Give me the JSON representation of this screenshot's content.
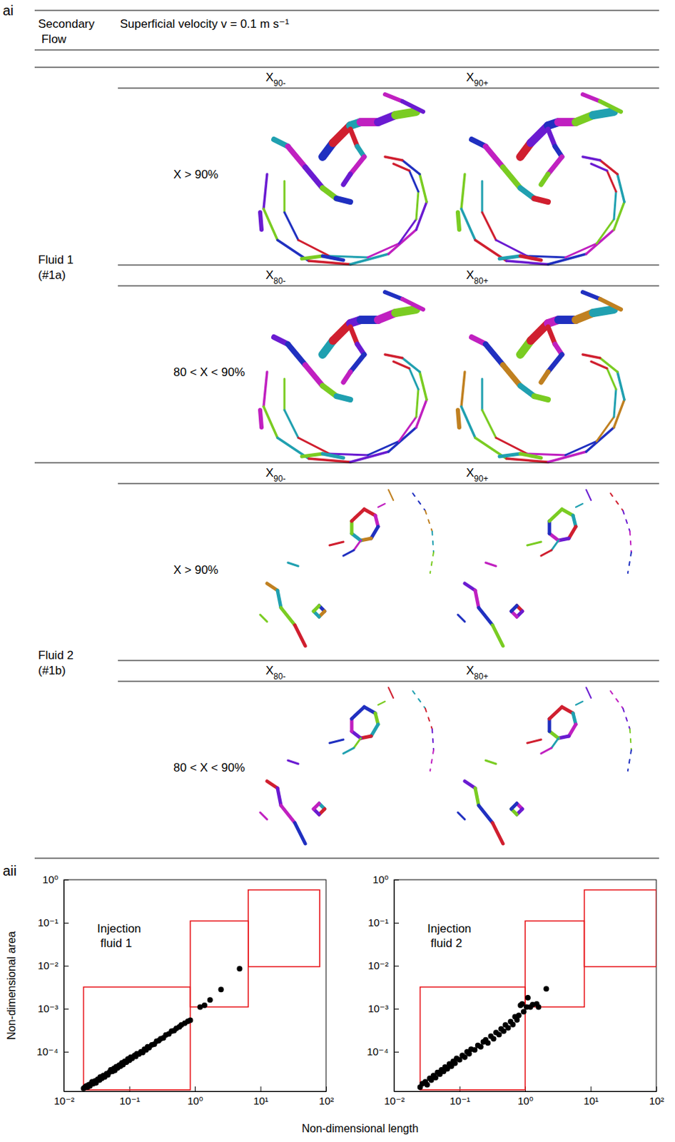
{
  "figure": {
    "panel_a_i": {
      "label": "ai",
      "header": {
        "col1": "Secondary Flow",
        "col2": "Superficial velocity v = 0.1 m s⁻¹"
      },
      "groups": [
        {
          "name": "Fluid 1",
          "id": "(#1a)",
          "rows": [
            {
              "label": "X > 90%",
              "columns": [
                "X90-",
                "X90+"
              ]
            },
            {
              "label": "80 < X < 90%",
              "columns": [
                "X80-",
                "X80+"
              ]
            }
          ]
        },
        {
          "name": "Fluid 2",
          "id": "(#1b)",
          "rows": [
            {
              "label": "X > 90%",
              "columns": [
                "X90-",
                "X90+"
              ]
            },
            {
              "label": "80 < X < 90%",
              "columns": [
                "X80-",
                "X80+"
              ]
            }
          ]
        }
      ]
    },
    "panel_a_ii_label": "aii",
    "shared_x_label": "Non-dimensional length"
  },
  "chart_data": [
    {
      "type": "scatter",
      "annotation": "Injection fluid 1",
      "y_label": "Non-dimensional area",
      "log": true,
      "color": "#000000",
      "marker": "circle",
      "xlim": [
        0.01,
        100
      ],
      "ylim": [
        1.2e-05,
        1
      ],
      "xticks": [
        {
          "value": 0.01,
          "label": "10⁻²"
        },
        {
          "value": 0.1,
          "label": "10⁻¹"
        },
        {
          "value": 1,
          "label": "10⁰"
        },
        {
          "value": 10,
          "label": "10¹"
        },
        {
          "value": 100,
          "label": "10²"
        }
      ],
      "yticks": [
        {
          "value": 0.0001,
          "label": "10⁻⁴"
        },
        {
          "value": 0.001,
          "label": "10⁻³"
        },
        {
          "value": 0.01,
          "label": "10⁻²"
        },
        {
          "value": 0.1,
          "label": "10⁻¹"
        },
        {
          "value": 1,
          "label": "10⁰"
        }
      ],
      "regions": [
        {
          "x": [
            0.02,
            0.85
          ],
          "y": [
            1.3e-05,
            0.0032
          ]
        },
        {
          "x": [
            0.85,
            6.5
          ],
          "y": [
            0.0011,
            0.11
          ]
        },
        {
          "x": [
            6.5,
            80
          ],
          "y": [
            0.0095,
            0.58
          ]
        }
      ],
      "x": [
        0.02,
        0.021,
        0.022,
        0.023,
        0.024,
        0.025,
        0.026,
        0.027,
        0.028,
        0.03,
        0.031,
        0.033,
        0.035,
        0.036,
        0.038,
        0.04,
        0.042,
        0.045,
        0.047,
        0.05,
        0.052,
        0.055,
        0.058,
        0.06,
        0.063,
        0.066,
        0.07,
        0.073,
        0.077,
        0.08,
        0.085,
        0.09,
        0.095,
        0.1,
        0.105,
        0.11,
        0.12,
        0.125,
        0.13,
        0.14,
        0.15,
        0.16,
        0.17,
        0.18,
        0.19,
        0.2,
        0.22,
        0.24,
        0.26,
        0.28,
        0.3,
        0.33,
        0.36,
        0.4,
        0.44,
        0.48,
        0.52,
        0.58,
        0.62,
        0.7,
        0.78,
        0.85,
        1.2,
        1.4,
        1.7,
        2.5,
        4.8
      ],
      "values": [
        1.4e-05,
        1.5e-05,
        1.6e-05,
        1.5e-05,
        1.7e-05,
        1.6e-05,
        1.8e-05,
        2e-05,
        1.8e-05,
        2.1e-05,
        1.9e-05,
        2.3e-05,
        2.2e-05,
        2.6e-05,
        2.4e-05,
        2.8e-05,
        2.6e-05,
        3.1e-05,
        2.9e-05,
        3.4e-05,
        3.8e-05,
        3.5e-05,
        4.1e-05,
        3.7e-05,
        4.5e-05,
        4.2e-05,
        4.9e-05,
        4.6e-05,
        5.5e-05,
        5e-05,
        6e-05,
        5.7e-05,
        6.8e-05,
        6.3e-05,
        7.5e-05,
        7e-05,
        8.2e-05,
        7.8e-05,
        9e-05,
        8.8e-05,
        0.0001,
        9.6e-05,
        0.000115,
        0.00011,
        0.00013,
        0.000125,
        0.000145,
        0.00015,
        0.000175,
        0.00018,
        0.0002,
        0.00021,
        0.000245,
        0.00026,
        0.0003,
        0.00031,
        0.00035,
        0.00038,
        0.00042,
        0.00046,
        0.00051,
        0.00054,
        0.0011,
        0.0012,
        0.0016,
        0.0028,
        0.0085
      ]
    },
    {
      "type": "scatter",
      "annotation": "Injection fluid 2",
      "log": true,
      "color": "#000000",
      "marker": "circle",
      "xlim": [
        0.01,
        100
      ],
      "ylim": [
        1.2e-05,
        1
      ],
      "xticks": [
        {
          "value": 0.01,
          "label": "10⁻²"
        },
        {
          "value": 0.1,
          "label": "10⁻¹"
        },
        {
          "value": 1,
          "label": "10⁰"
        },
        {
          "value": 10,
          "label": "10¹"
        },
        {
          "value": 100,
          "label": "10²"
        }
      ],
      "yticks": [
        {
          "value": 0.0001,
          "label": "10⁻⁴"
        },
        {
          "value": 0.001,
          "label": "10⁻³"
        },
        {
          "value": 0.01,
          "label": "10⁻²"
        },
        {
          "value": 0.1,
          "label": "10⁻¹"
        },
        {
          "value": 1,
          "label": "10⁰"
        }
      ],
      "regions": [
        {
          "x": [
            0.025,
            1.0
          ],
          "y": [
            1.3e-05,
            0.0032
          ]
        },
        {
          "x": [
            1.0,
            8
          ],
          "y": [
            0.0011,
            0.11
          ]
        },
        {
          "x": [
            8,
            100
          ],
          "y": [
            0.0095,
            0.58
          ]
        }
      ],
      "x": [
        0.025,
        0.027,
        0.03,
        0.032,
        0.035,
        0.037,
        0.04,
        0.043,
        0.046,
        0.05,
        0.053,
        0.057,
        0.06,
        0.065,
        0.07,
        0.075,
        0.08,
        0.085,
        0.09,
        0.1,
        0.11,
        0.12,
        0.13,
        0.14,
        0.15,
        0.17,
        0.19,
        0.21,
        0.23,
        0.25,
        0.27,
        0.3,
        0.33,
        0.36,
        0.4,
        0.43,
        0.47,
        0.5,
        0.55,
        0.6,
        0.65,
        0.7,
        0.75,
        0.8,
        0.85,
        0.9,
        0.95,
        1.05,
        1.1,
        1.2,
        1.3,
        1.5,
        1.6,
        2.1
      ],
      "values": [
        1.5e-05,
        1.8e-05,
        2e-05,
        1.7e-05,
        2.4e-05,
        2.2e-05,
        2.8e-05,
        2.5e-05,
        3.3e-05,
        3e-05,
        3.8e-05,
        3.5e-05,
        4.4e-05,
        4e-05,
        5.2e-05,
        4.6e-05,
        6e-05,
        5.4e-05,
        7e-05,
        6.5e-05,
        8.2e-05,
        7.5e-05,
        0.0001,
        9e-05,
        0.000115,
        0.00011,
        0.00014,
        0.00013,
        0.00017,
        0.00019,
        0.00016,
        0.00023,
        0.0002,
        0.00028,
        0.00025,
        0.00034,
        0.0003,
        0.00042,
        0.00036,
        0.0005,
        0.00043,
        0.00065,
        0.00055,
        0.0007,
        0.0012,
        0.0013,
        0.00085,
        0.0011,
        0.0018,
        0.0011,
        0.00125,
        0.0013,
        0.0011,
        0.0029
      ]
    }
  ]
}
